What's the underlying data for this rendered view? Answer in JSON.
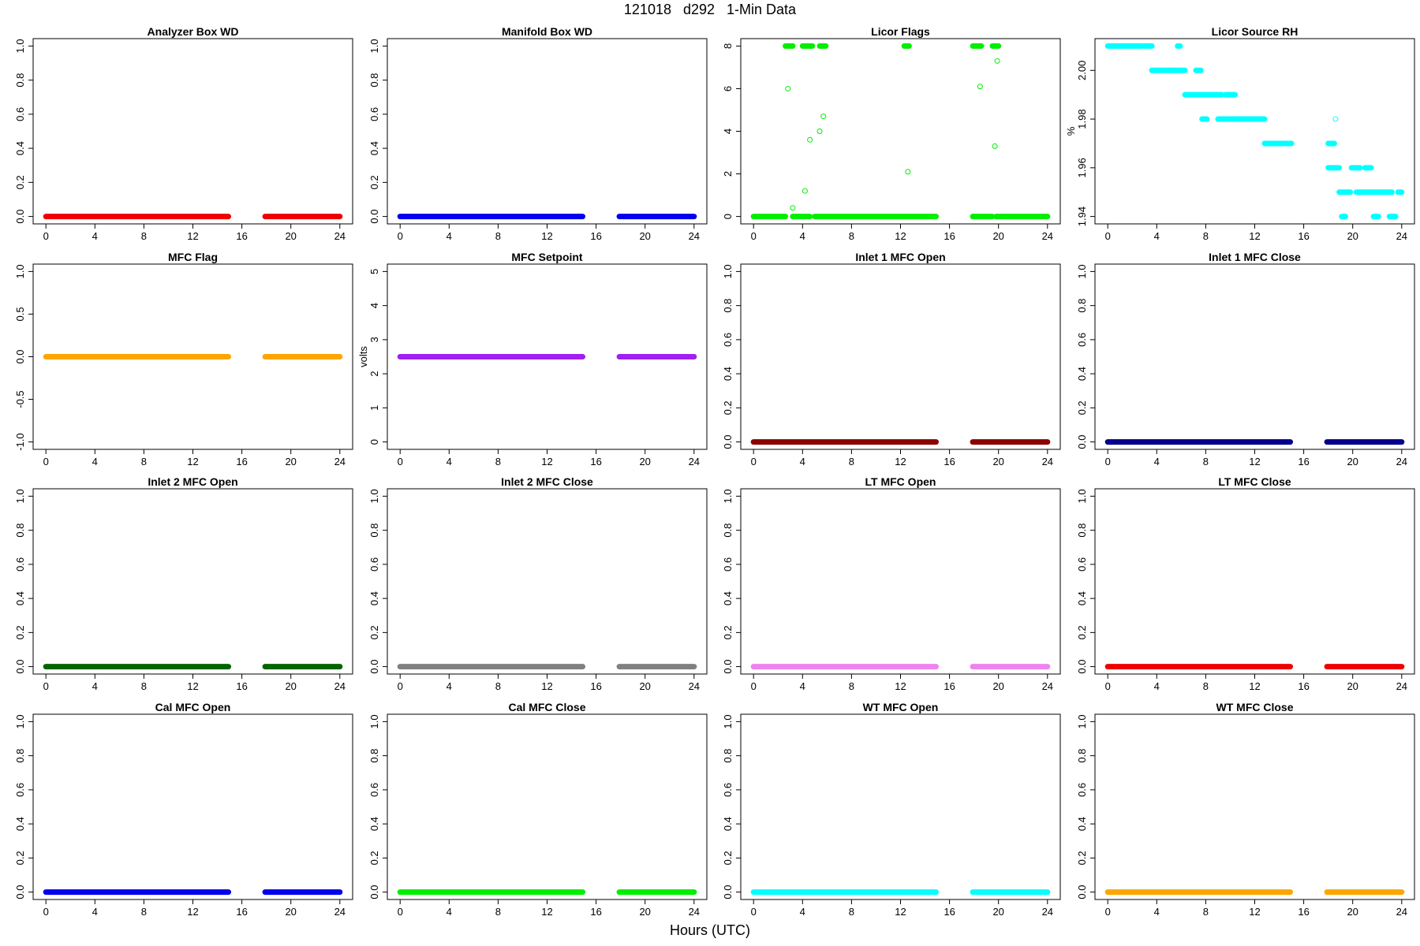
{
  "page": {
    "title": "121018   d292   1-Min Data",
    "xlabel": "Hours (UTC)"
  },
  "chart_data": [
    {
      "type": "scatter",
      "title": "Analyzer Box WD",
      "color": "#ee0000",
      "xlim": [
        0,
        24
      ],
      "xticks": [
        0,
        4,
        8,
        12,
        16,
        20,
        24
      ],
      "ylim": [
        0,
        1
      ],
      "yticks": [
        "0.0",
        "0.2",
        "0.4",
        "0.6",
        "0.8",
        "1.0"
      ],
      "ylabel": "",
      "segments": [
        {
          "x": [
            0,
            14.9
          ],
          "y": 0
        },
        {
          "x": [
            17.9,
            24
          ],
          "y": 0
        }
      ]
    },
    {
      "type": "scatter",
      "title": "Manifold Box WD",
      "color": "#0000ee",
      "xlim": [
        0,
        24
      ],
      "xticks": [
        0,
        4,
        8,
        12,
        16,
        20,
        24
      ],
      "ylim": [
        0,
        1
      ],
      "yticks": [
        "0.0",
        "0.2",
        "0.4",
        "0.6",
        "0.8",
        "1.0"
      ],
      "ylabel": "",
      "segments": [
        {
          "x": [
            0,
            14.9
          ],
          "y": 0
        },
        {
          "x": [
            17.9,
            24
          ],
          "y": 0
        }
      ]
    },
    {
      "type": "scatter",
      "title": "Licor Flags",
      "color": "#00ee00",
      "xlim": [
        0,
        24
      ],
      "xticks": [
        0,
        4,
        8,
        12,
        16,
        20,
        24
      ],
      "ylim": [
        0,
        8
      ],
      "yticks": [
        "0",
        "2",
        "4",
        "6",
        "8"
      ],
      "ylabel": "",
      "segments": [
        {
          "x": [
            0,
            2.6
          ],
          "y": 0
        },
        {
          "x": [
            3.2,
            4.6
          ],
          "y": 0
        },
        {
          "x": [
            5.0,
            14.9
          ],
          "y": 0
        },
        {
          "x": [
            17.9,
            19.5
          ],
          "y": 0
        },
        {
          "x": [
            19.8,
            24
          ],
          "y": 0
        },
        {
          "x": [
            2.6,
            3.2
          ],
          "y": 8
        },
        {
          "x": [
            4.0,
            4.8
          ],
          "y": 8
        },
        {
          "x": [
            5.4,
            5.9
          ],
          "y": 8
        },
        {
          "x": [
            12.3,
            12.7
          ],
          "y": 8
        },
        {
          "x": [
            17.9,
            18.6
          ],
          "y": 8
        },
        {
          "x": [
            19.5,
            20.0
          ],
          "y": 8
        }
      ],
      "points": [
        [
          2.8,
          6.0
        ],
        [
          3.2,
          0.4
        ],
        [
          4.2,
          1.2
        ],
        [
          4.6,
          3.6
        ],
        [
          5.4,
          4.0
        ],
        [
          5.7,
          4.7
        ],
        [
          12.6,
          2.1
        ],
        [
          18.5,
          6.1
        ],
        [
          19.7,
          3.3
        ],
        [
          19.9,
          7.3
        ]
      ]
    },
    {
      "type": "scatter",
      "title": "Licor Source RH",
      "color": "#00ffff",
      "xlim": [
        0,
        24
      ],
      "xticks": [
        0,
        4,
        8,
        12,
        16,
        20,
        24
      ],
      "ylim": [
        1.94,
        2.01
      ],
      "yticks": [
        "1.94",
        "1.96",
        "1.98",
        "2.00"
      ],
      "ylabel": "%",
      "segments": [
        {
          "x": [
            0,
            2.8
          ],
          "y": 2.01
        },
        {
          "x": [
            3.0,
            3.6
          ],
          "y": 2.01
        },
        {
          "x": [
            5.7,
            5.9
          ],
          "y": 2.01
        },
        {
          "x": [
            3.6,
            5.3
          ],
          "y": 2.0
        },
        {
          "x": [
            5.3,
            6.3
          ],
          "y": 2.0
        },
        {
          "x": [
            7.2,
            7.6
          ],
          "y": 2.0
        },
        {
          "x": [
            6.3,
            7.3
          ],
          "y": 1.99
        },
        {
          "x": [
            7.3,
            9.3
          ],
          "y": 1.99
        },
        {
          "x": [
            9.6,
            10.4
          ],
          "y": 1.99
        },
        {
          "x": [
            7.7,
            8.1
          ],
          "y": 1.98
        },
        {
          "x": [
            9.0,
            9.9
          ],
          "y": 1.98
        },
        {
          "x": [
            10.0,
            12.8
          ],
          "y": 1.98
        },
        {
          "x": [
            12.8,
            15.0
          ],
          "y": 1.97
        },
        {
          "x": [
            18.0,
            18.5
          ],
          "y": 1.97
        },
        {
          "x": [
            18.0,
            18.9
          ],
          "y": 1.96
        },
        {
          "x": [
            19.9,
            20.6
          ],
          "y": 1.96
        },
        {
          "x": [
            21.0,
            21.5
          ],
          "y": 1.96
        },
        {
          "x": [
            18.9,
            19.8
          ],
          "y": 1.95
        },
        {
          "x": [
            20.3,
            22.0
          ],
          "y": 1.95
        },
        {
          "x": [
            22.1,
            23.2
          ],
          "y": 1.95
        },
        {
          "x": [
            23.7,
            24.0
          ],
          "y": 1.95
        },
        {
          "x": [
            19.1,
            19.4
          ],
          "y": 1.94
        },
        {
          "x": [
            21.7,
            22.1
          ],
          "y": 1.94
        },
        {
          "x": [
            23.0,
            23.5
          ],
          "y": 1.94
        }
      ],
      "points": [
        [
          18.6,
          1.98
        ]
      ]
    },
    {
      "type": "scatter",
      "title": "MFC Flag",
      "color": "#ffa500",
      "xlim": [
        0,
        24
      ],
      "xticks": [
        0,
        4,
        8,
        12,
        16,
        20,
        24
      ],
      "ylim": [
        -1,
        1
      ],
      "yticks": [
        "-1.0",
        "-0.5",
        "0.0",
        "0.5",
        "1.0"
      ],
      "ylabel": "",
      "segments": [
        {
          "x": [
            0,
            14.9
          ],
          "y": 0
        },
        {
          "x": [
            17.9,
            24
          ],
          "y": 0
        }
      ]
    },
    {
      "type": "scatter",
      "title": "MFC Setpoint",
      "color": "#a020f0",
      "xlim": [
        0,
        24
      ],
      "xticks": [
        0,
        4,
        8,
        12,
        16,
        20,
        24
      ],
      "ylim": [
        0,
        5
      ],
      "yticks": [
        "0",
        "1",
        "2",
        "3",
        "4",
        "5"
      ],
      "ylabel": "volts",
      "segments": [
        {
          "x": [
            0,
            14.9
          ],
          "y": 2.5
        },
        {
          "x": [
            17.9,
            24
          ],
          "y": 2.5
        }
      ]
    },
    {
      "type": "scatter",
      "title": "Inlet 1 MFC Open",
      "color": "#8b0000",
      "xlim": [
        0,
        24
      ],
      "xticks": [
        0,
        4,
        8,
        12,
        16,
        20,
        24
      ],
      "ylim": [
        0,
        1
      ],
      "yticks": [
        "0.0",
        "0.2",
        "0.4",
        "0.6",
        "0.8",
        "1.0"
      ],
      "ylabel": "",
      "segments": [
        {
          "x": [
            0,
            14.9
          ],
          "y": 0
        },
        {
          "x": [
            17.9,
            24
          ],
          "y": 0
        }
      ]
    },
    {
      "type": "scatter",
      "title": "Inlet 1 MFC Close",
      "color": "#00008b",
      "xlim": [
        0,
        24
      ],
      "xticks": [
        0,
        4,
        8,
        12,
        16,
        20,
        24
      ],
      "ylim": [
        0,
        1
      ],
      "yticks": [
        "0.0",
        "0.2",
        "0.4",
        "0.6",
        "0.8",
        "1.0"
      ],
      "ylabel": "",
      "segments": [
        {
          "x": [
            0,
            14.9
          ],
          "y": 0
        },
        {
          "x": [
            17.9,
            24
          ],
          "y": 0
        }
      ]
    },
    {
      "type": "scatter",
      "title": "Inlet 2 MFC Open",
      "color": "#006400",
      "xlim": [
        0,
        24
      ],
      "xticks": [
        0,
        4,
        8,
        12,
        16,
        20,
        24
      ],
      "ylim": [
        0,
        1
      ],
      "yticks": [
        "0.0",
        "0.2",
        "0.4",
        "0.6",
        "0.8",
        "1.0"
      ],
      "ylabel": "",
      "segments": [
        {
          "x": [
            0,
            14.9
          ],
          "y": 0
        },
        {
          "x": [
            17.9,
            24
          ],
          "y": 0
        }
      ]
    },
    {
      "type": "scatter",
      "title": "Inlet 2 MFC Close",
      "color": "#808080",
      "xlim": [
        0,
        24
      ],
      "xticks": [
        0,
        4,
        8,
        12,
        16,
        20,
        24
      ],
      "ylim": [
        0,
        1
      ],
      "yticks": [
        "0.0",
        "0.2",
        "0.4",
        "0.6",
        "0.8",
        "1.0"
      ],
      "ylabel": "",
      "segments": [
        {
          "x": [
            0,
            14.9
          ],
          "y": 0
        },
        {
          "x": [
            17.9,
            24
          ],
          "y": 0
        }
      ]
    },
    {
      "type": "scatter",
      "title": "LT MFC Open",
      "color": "#ee82ee",
      "xlim": [
        0,
        24
      ],
      "xticks": [
        0,
        4,
        8,
        12,
        16,
        20,
        24
      ],
      "ylim": [
        0,
        1
      ],
      "yticks": [
        "0.0",
        "0.2",
        "0.4",
        "0.6",
        "0.8",
        "1.0"
      ],
      "ylabel": "",
      "segments": [
        {
          "x": [
            0,
            14.9
          ],
          "y": 0
        },
        {
          "x": [
            17.9,
            24
          ],
          "y": 0
        }
      ]
    },
    {
      "type": "scatter",
      "title": "LT MFC Close",
      "color": "#ee0000",
      "xlim": [
        0,
        24
      ],
      "xticks": [
        0,
        4,
        8,
        12,
        16,
        20,
        24
      ],
      "ylim": [
        0,
        1
      ],
      "yticks": [
        "0.0",
        "0.2",
        "0.4",
        "0.6",
        "0.8",
        "1.0"
      ],
      "ylabel": "",
      "segments": [
        {
          "x": [
            0,
            14.9
          ],
          "y": 0
        },
        {
          "x": [
            17.9,
            24
          ],
          "y": 0
        }
      ]
    },
    {
      "type": "scatter",
      "title": "Cal MFC Open",
      "color": "#0000ee",
      "xlim": [
        0,
        24
      ],
      "xticks": [
        0,
        4,
        8,
        12,
        16,
        20,
        24
      ],
      "ylim": [
        0,
        1
      ],
      "yticks": [
        "0.0",
        "0.2",
        "0.4",
        "0.6",
        "0.8",
        "1.0"
      ],
      "ylabel": "",
      "segments": [
        {
          "x": [
            0,
            14.9
          ],
          "y": 0
        },
        {
          "x": [
            17.9,
            24
          ],
          "y": 0
        }
      ]
    },
    {
      "type": "scatter",
      "title": "Cal MFC Close",
      "color": "#00ee00",
      "xlim": [
        0,
        24
      ],
      "xticks": [
        0,
        4,
        8,
        12,
        16,
        20,
        24
      ],
      "ylim": [
        0,
        1
      ],
      "yticks": [
        "0.0",
        "0.2",
        "0.4",
        "0.6",
        "0.8",
        "1.0"
      ],
      "ylabel": "",
      "segments": [
        {
          "x": [
            0,
            14.9
          ],
          "y": 0
        },
        {
          "x": [
            17.9,
            24
          ],
          "y": 0
        }
      ]
    },
    {
      "type": "scatter",
      "title": "WT MFC Open",
      "color": "#00ffff",
      "xlim": [
        0,
        24
      ],
      "xticks": [
        0,
        4,
        8,
        12,
        16,
        20,
        24
      ],
      "ylim": [
        0,
        1
      ],
      "yticks": [
        "0.0",
        "0.2",
        "0.4",
        "0.6",
        "0.8",
        "1.0"
      ],
      "ylabel": "",
      "segments": [
        {
          "x": [
            0,
            14.9
          ],
          "y": 0
        },
        {
          "x": [
            17.9,
            24
          ],
          "y": 0
        }
      ]
    },
    {
      "type": "scatter",
      "title": "WT MFC Close",
      "color": "#ffa500",
      "xlim": [
        0,
        24
      ],
      "xticks": [
        0,
        4,
        8,
        12,
        16,
        20,
        24
      ],
      "ylim": [
        0,
        1
      ],
      "yticks": [
        "0.0",
        "0.2",
        "0.4",
        "0.6",
        "0.8",
        "1.0"
      ],
      "ylabel": "",
      "segments": [
        {
          "x": [
            0,
            14.9
          ],
          "y": 0
        },
        {
          "x": [
            17.9,
            24
          ],
          "y": 0
        }
      ]
    }
  ]
}
